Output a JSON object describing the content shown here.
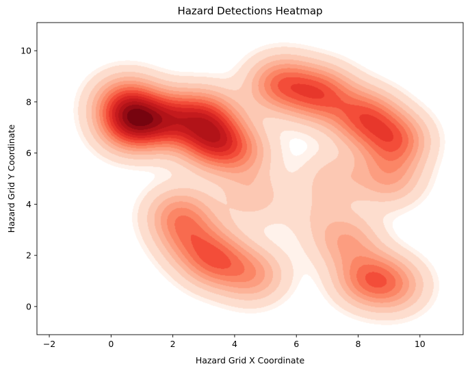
{
  "chart_data": {
    "type": "heatmap",
    "title": "Hazard Detections Heatmap",
    "xlabel": "Hazard Grid X Coordinate",
    "ylabel": "Hazard Grid Y Coordinate",
    "xlim": [
      -2.4,
      11.4
    ],
    "ylim": [
      -1.1,
      11.1
    ],
    "xticks": [
      -2,
      0,
      2,
      4,
      6,
      8,
      10
    ],
    "yticks": [
      0,
      2,
      4,
      6,
      8,
      10
    ],
    "grid": false,
    "legend": "none",
    "colormap": "Reds",
    "density_hotspots": [
      {
        "x": 0.7,
        "y": 7.1,
        "intensity": 1.0
      },
      {
        "x": 0.5,
        "y": 8.0,
        "intensity": 0.75
      },
      {
        "x": 1.8,
        "y": 7.3,
        "intensity": 0.75
      },
      {
        "x": 3.3,
        "y": 6.5,
        "intensity": 0.9
      },
      {
        "x": 3.0,
        "y": 7.5,
        "intensity": 0.7
      },
      {
        "x": 4.2,
        "y": 6.0,
        "intensity": 0.45
      },
      {
        "x": 5.5,
        "y": 8.7,
        "intensity": 0.75
      },
      {
        "x": 6.8,
        "y": 8.3,
        "intensity": 0.8
      },
      {
        "x": 8.2,
        "y": 7.4,
        "intensity": 0.8
      },
      {
        "x": 9.2,
        "y": 6.5,
        "intensity": 0.75
      },
      {
        "x": 9.0,
        "y": 5.0,
        "intensity": 0.45
      },
      {
        "x": 7.2,
        "y": 5.0,
        "intensity": 0.3
      },
      {
        "x": 4.6,
        "y": 4.3,
        "intensity": 0.3
      },
      {
        "x": 2.2,
        "y": 3.6,
        "intensity": 0.55
      },
      {
        "x": 2.6,
        "y": 2.6,
        "intensity": 0.45
      },
      {
        "x": 3.4,
        "y": 1.8,
        "intensity": 0.7
      },
      {
        "x": 4.6,
        "y": 1.2,
        "intensity": 0.5
      },
      {
        "x": 7.6,
        "y": 2.6,
        "intensity": 0.45
      },
      {
        "x": 8.3,
        "y": 1.1,
        "intensity": 0.65
      },
      {
        "x": 9.2,
        "y": 0.8,
        "intensity": 0.45
      },
      {
        "x": 6.5,
        "y": 3.6,
        "intensity": 0.15
      }
    ],
    "colors": {
      "ramp": [
        "#ffffff",
        "#fff0e9",
        "#fcd3c1",
        "#fcaa8e",
        "#fb7d5d",
        "#f14331",
        "#d21f20",
        "#ad1117",
        "#67000d"
      ]
    }
  }
}
